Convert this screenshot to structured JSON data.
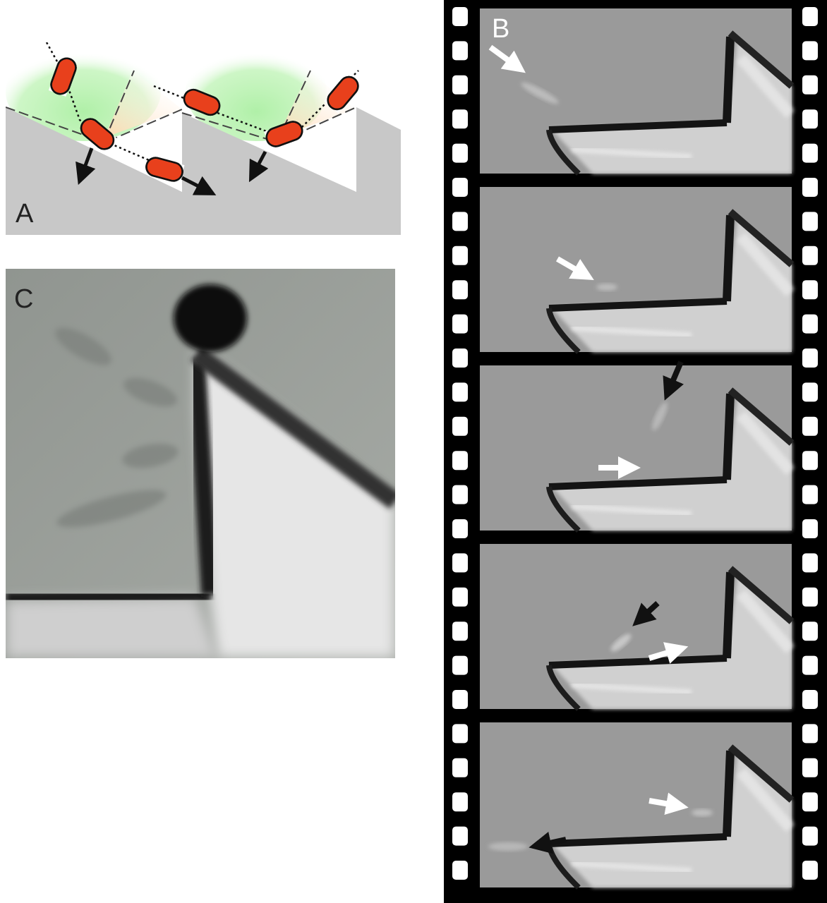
{
  "figure": {
    "panels": [
      {
        "id": "A",
        "label": "A",
        "type": "schematic"
      },
      {
        "id": "B",
        "label": "B",
        "type": "filmstrip",
        "frame_count": 5
      },
      {
        "id": "C",
        "label": "C",
        "type": "micrograph"
      }
    ]
  },
  "colors": {
    "wall_gray": "#c8c8c8",
    "cell_red": "#e8401c",
    "cell_white": "#ffffff",
    "green_zone": "#b8f0b0",
    "orange_zone": "#ffe0c0",
    "film_black": "#000000",
    "arrow_white": "#ffffff",
    "arrow_black": "#111111"
  },
  "icons": {
    "cell": "bacterium-capsule-icon",
    "white_arrow": "white-arrow-icon",
    "black_arrow": "black-arrow-icon",
    "sprocket": "film-sprocket-hole"
  }
}
